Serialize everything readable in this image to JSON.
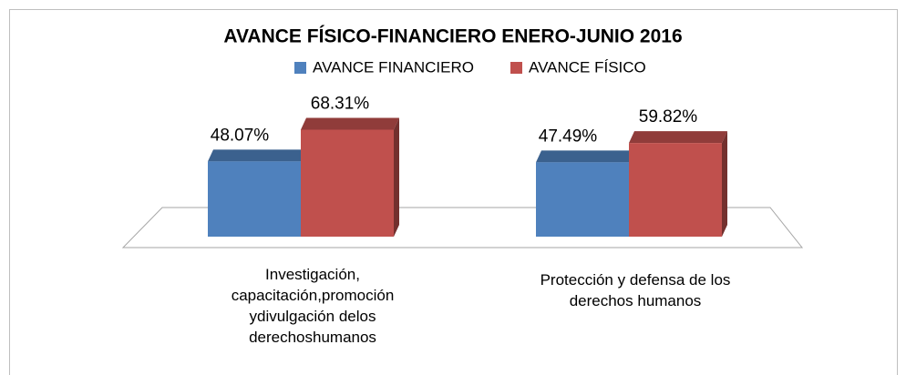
{
  "chart_data": {
    "type": "bar3d",
    "title": "AVANCE FÍSICO-FINANCIERO ENERO-JUNIO  2016",
    "categories": [
      "Investigación, capacitación,promoción ydivulgación delos derechoshumanos",
      "Protección y defensa de los derechos humanos"
    ],
    "series": [
      {
        "name": "AVANCE FINANCIERO",
        "color": "#4f81bd",
        "values": [
          48.07,
          47.49
        ],
        "value_labels": [
          "48.07%",
          "47.49%"
        ]
      },
      {
        "name": "AVANCE FÍSICO",
        "color": "#c0504d",
        "values": [
          68.31,
          59.82
        ],
        "value_labels": [
          "68.31%",
          "59.82%"
        ]
      }
    ]
  }
}
